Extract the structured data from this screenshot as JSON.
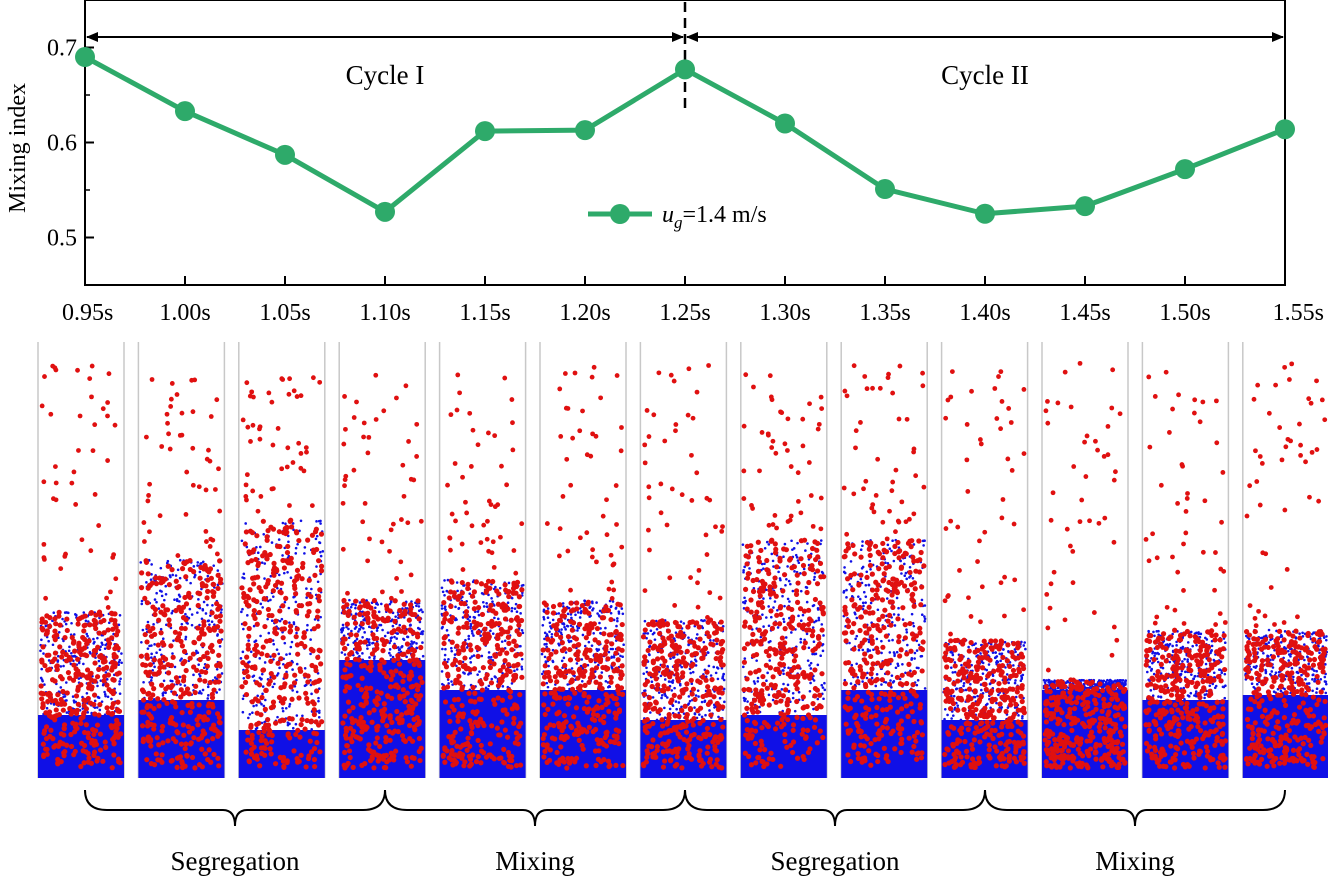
{
  "chart_data": {
    "type": "line",
    "title": "",
    "xlabel": "",
    "ylabel": "Mixing index",
    "ylim": [
      0.45,
      0.75
    ],
    "yticks": [
      0.5,
      0.6,
      0.7
    ],
    "ytick_labels": [
      "0.5",
      "0.6",
      "0.7"
    ],
    "categories": [
      "0.95s",
      "1.00s",
      "1.05s",
      "1.10s",
      "1.15s",
      "1.20s",
      "1.25s",
      "1.30s",
      "1.35s",
      "1.40s",
      "1.45s",
      "1.50s",
      "1.55s"
    ],
    "series": [
      {
        "name_prefix": "u",
        "name_subscript": "g",
        "name_suffix": "=1.4 m/s",
        "color": "#2eaa6a",
        "values": [
          0.69,
          0.633,
          0.587,
          0.527,
          0.612,
          0.613,
          0.677,
          0.62,
          0.551,
          0.525,
          0.533,
          0.572,
          0.614
        ]
      }
    ],
    "legend_position": "center",
    "divider_at": "1.25s",
    "cycles": [
      {
        "label": "Cycle I",
        "from": "0.95s",
        "to": "1.25s"
      },
      {
        "label": "Cycle II",
        "from": "1.25s",
        "to": "1.55s"
      }
    ]
  },
  "snapshots": {
    "count": 13,
    "colors": {
      "large_particles": "#e01010",
      "small_particles": "#1010e6",
      "wall": "#c8c8c8"
    }
  },
  "phases": [
    {
      "label": "Segregation",
      "from": "0.95s",
      "to": "1.10s"
    },
    {
      "label": "Mixing",
      "from": "1.10s",
      "to": "1.25s"
    },
    {
      "label": "Segregation",
      "from": "1.25s",
      "to": "1.40s"
    },
    {
      "label": "Mixing",
      "from": "1.40s",
      "to": "1.55s"
    }
  ]
}
